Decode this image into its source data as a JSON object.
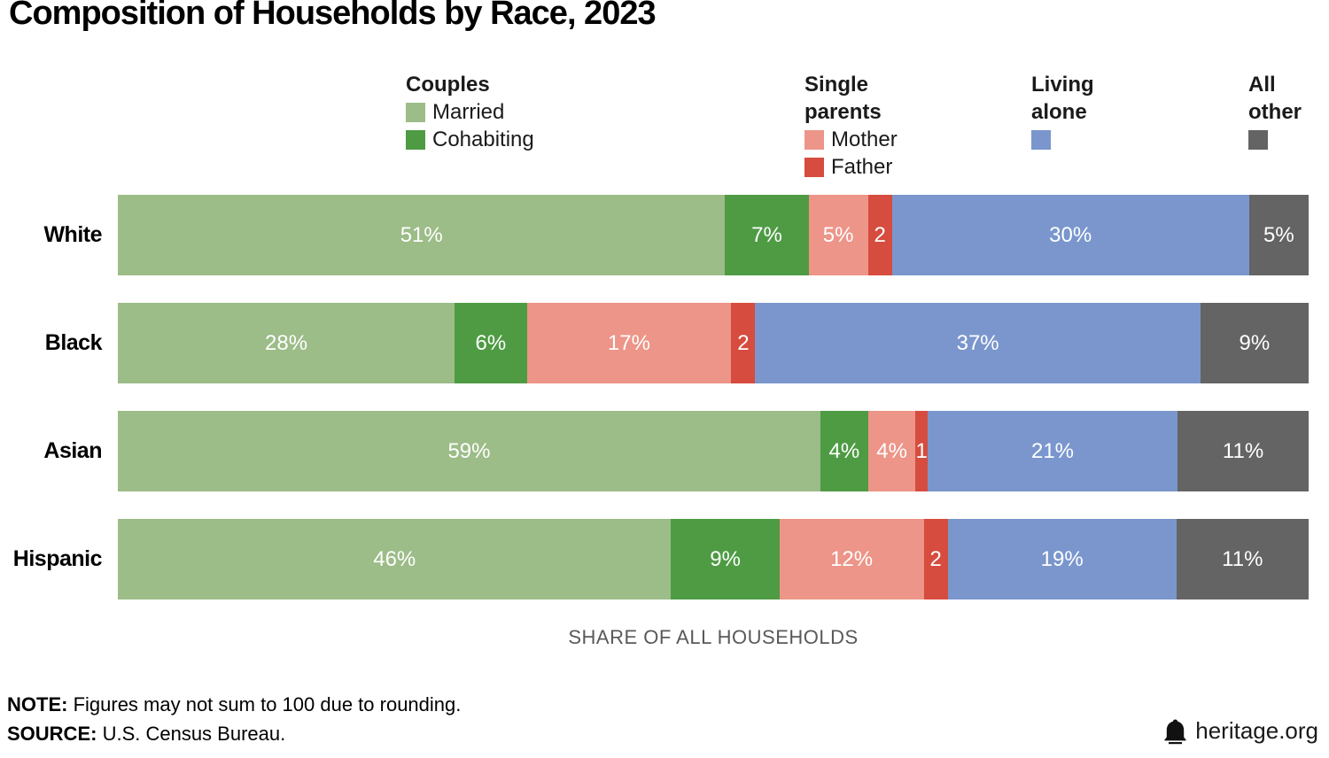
{
  "title": "Composition of Households by Race, 2023",
  "legend": {
    "groups": [
      {
        "header": "Couples",
        "items": [
          {
            "label": "Married",
            "color": "#9CBC88"
          },
          {
            "label": "Cohabiting",
            "color": "#4E9B44"
          }
        ]
      },
      {
        "header": "Single parents",
        "items": [
          {
            "label": "Mother",
            "color": "#EC9588"
          },
          {
            "label": "Father",
            "color": "#D64C3E"
          }
        ]
      },
      {
        "header": "Living alone",
        "items": [
          {
            "label": "",
            "color": "#7A96CD"
          }
        ]
      },
      {
        "header": "All other",
        "items": [
          {
            "label": "",
            "color": "#646464"
          }
        ]
      }
    ]
  },
  "chart_data": {
    "type": "bar",
    "orientation": "horizontal",
    "stacked": true,
    "title": "Composition of Households by Race, 2023",
    "xlabel": "SHARE OF ALL HOUSEHOLDS",
    "xlim": [
      0,
      100
    ],
    "grid": false,
    "legend_position": "top",
    "unit": "percent of all households",
    "categories": [
      "White",
      "Black",
      "Asian",
      "Hispanic"
    ],
    "series": [
      {
        "name": "Married",
        "group": "Couples",
        "color": "#9CBC88",
        "values": [
          51,
          28,
          59,
          46
        ],
        "labels": [
          "51%",
          "28%",
          "59%",
          "46%"
        ]
      },
      {
        "name": "Cohabiting",
        "group": "Couples",
        "color": "#4E9B44",
        "values": [
          7,
          6,
          4,
          9
        ],
        "labels": [
          "7%",
          "6%",
          "4%",
          "9%"
        ]
      },
      {
        "name": "Mother",
        "group": "Single parents",
        "color": "#EC9588",
        "values": [
          5,
          17,
          4,
          12
        ],
        "labels": [
          "5%",
          "17%",
          "4%",
          "12%"
        ]
      },
      {
        "name": "Father",
        "group": "Single parents",
        "color": "#D64C3E",
        "values": [
          2,
          2,
          1,
          2
        ],
        "labels": [
          "2",
          "2",
          "1",
          "2"
        ]
      },
      {
        "name": "Living alone",
        "group": "Living alone",
        "color": "#7A96CD",
        "values": [
          30,
          37,
          21,
          19
        ],
        "labels": [
          "30%",
          "37%",
          "21%",
          "19%"
        ]
      },
      {
        "name": "All other",
        "group": "All other",
        "color": "#646464",
        "values": [
          5,
          9,
          11,
          11
        ],
        "labels": [
          "5%",
          "9%",
          "11%",
          "11%"
        ]
      }
    ]
  },
  "footer": {
    "note_label": "NOTE:",
    "note_text": " Figures may not sum to 100 due to rounding.",
    "source_label": "SOURCE:",
    "source_text": " U.S. Census Bureau.",
    "brand_text": "heritage.org",
    "brand_icon": "liberty-bell-icon"
  }
}
